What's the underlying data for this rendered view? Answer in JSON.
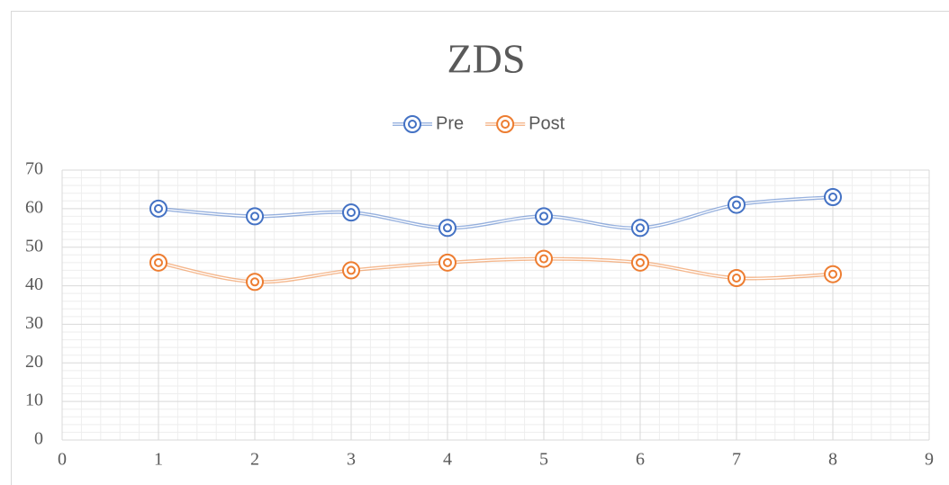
{
  "chart_data": {
    "type": "scatter",
    "title": "ZDS",
    "series": [
      {
        "name": "Pre",
        "color": "#4472c4",
        "x": [
          1,
          2,
          3,
          4,
          5,
          6,
          7,
          8
        ],
        "values": [
          60,
          58,
          59,
          55,
          58,
          55,
          61,
          63
        ]
      },
      {
        "name": "Post",
        "color": "#ed7d31",
        "x": [
          1,
          2,
          3,
          4,
          5,
          6,
          7,
          8
        ],
        "values": [
          46,
          41,
          44,
          46,
          47,
          46,
          42,
          43
        ]
      }
    ],
    "xlim": [
      0,
      9
    ],
    "xticks": [
      0,
      1,
      2,
      3,
      4,
      5,
      6,
      7,
      8,
      9
    ],
    "ylim": [
      0,
      70
    ],
    "yticks": [
      0,
      10,
      20,
      30,
      40,
      50,
      60,
      70
    ],
    "grid": true,
    "minor_grid": true,
    "smooth": true,
    "legend": "top"
  }
}
